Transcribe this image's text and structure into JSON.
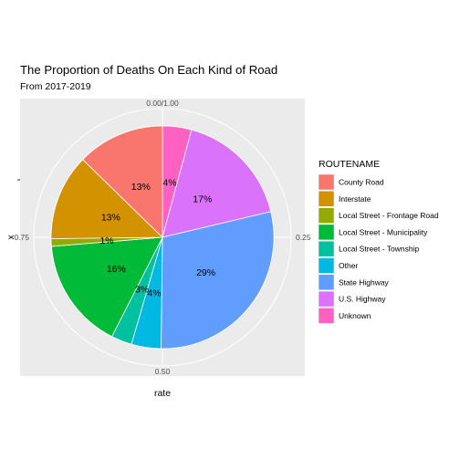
{
  "chart_data": {
    "type": "pie",
    "title": "The Proportion of Deaths On Each Kind of Road",
    "subtitle": "From 2017-2019",
    "xlabel": "rate",
    "ylabel": "x",
    "theta_ticks": [
      {
        "value": 0.0,
        "label": "0.00/1.00"
      },
      {
        "value": 0.25,
        "label": "0.25"
      },
      {
        "value": 0.5,
        "label": "0.50"
      },
      {
        "value": 0.75,
        "label": "0.75"
      }
    ],
    "legend": {
      "title": "ROUTENAME",
      "position": "right"
    },
    "slices": [
      {
        "name": "Unknown",
        "value": 0.042,
        "label": "4%",
        "color": "#FF61C3"
      },
      {
        "name": "U.S. Highway",
        "value": 0.171,
        "label": "17%",
        "color": "#DB72FB"
      },
      {
        "name": "State Highway",
        "value": 0.289,
        "label": "29%",
        "color": "#619CFF"
      },
      {
        "name": "Other",
        "value": 0.043,
        "label": "4%",
        "color": "#00B9E3"
      },
      {
        "name": "Local Street - Township",
        "value": 0.03,
        "label": "3%",
        "color": "#00C19F"
      },
      {
        "name": "Local Street - Municipality",
        "value": 0.162,
        "label": "16%",
        "color": "#00BA38"
      },
      {
        "name": "Local Street - Frontage Road",
        "value": 0.011,
        "label": "1%",
        "color": "#93AA00"
      },
      {
        "name": "Interstate",
        "value": 0.125,
        "label": "13%",
        "color": "#D39200"
      },
      {
        "name": "County Road",
        "value": 0.127,
        "label": "13%",
        "color": "#F8766D"
      }
    ],
    "legend_order": [
      "County Road",
      "Interstate",
      "Local Street - Frontage Road",
      "Local Street - Municipality",
      "Local Street - Township",
      "Other",
      "State Highway",
      "U.S. Highway",
      "Unknown"
    ],
    "panel_background": "#EBEBEB",
    "grid_color": "#FFFFFF",
    "grid": true
  }
}
